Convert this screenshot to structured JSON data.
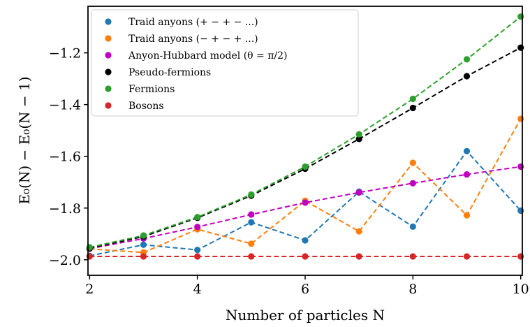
{
  "chart_data": {
    "type": "line",
    "xlabel": "Number of particles N",
    "ylabel": "E₀(N) − E₀(N − 1)",
    "xlim": [
      1.97,
      10.03
    ],
    "ylim": [
      -2.06,
      -1.02
    ],
    "xticks": [
      2,
      4,
      6,
      8,
      10
    ],
    "yticks": [
      -2.0,
      -1.8,
      -1.6,
      -1.4,
      -1.2
    ],
    "xtick_labels": [
      "2",
      "4",
      "6",
      "8",
      "10"
    ],
    "ytick_labels": [
      "−2.0",
      "−1.8",
      "−1.6",
      "−1.4",
      "−1.2"
    ],
    "grid": false,
    "legend_position": "top-left",
    "line_style": "dashed",
    "x": [
      2,
      3,
      4,
      5,
      6,
      7,
      8,
      9,
      10
    ],
    "series": [
      {
        "name": "Traid anyons (+ − + − ...)",
        "color": "#1f77b4",
        "values": [
          -1.985,
          -1.942,
          -1.962,
          -1.855,
          -1.925,
          -1.737,
          -1.872,
          -1.58,
          -1.81
        ]
      },
      {
        "name": "Traid anyons (− + − + ...)",
        "color": "#ff7f0e",
        "values": [
          -1.958,
          -1.972,
          -1.882,
          -1.938,
          -1.772,
          -1.89,
          -1.625,
          -1.828,
          -1.455
        ]
      },
      {
        "name": "Anyon-Hubbard model (θ = π/2)",
        "color": "#c000c0",
        "values": [
          -1.957,
          -1.918,
          -1.873,
          -1.825,
          -1.779,
          -1.74,
          -1.704,
          -1.67,
          -1.64
        ]
      },
      {
        "name": "Pseudo-fermions",
        "color": "#000000",
        "values": [
          -1.955,
          -1.91,
          -1.838,
          -1.752,
          -1.648,
          -1.533,
          -1.413,
          -1.29,
          -1.18
        ]
      },
      {
        "name": "Fermions",
        "color": "#2ca02c",
        "values": [
          -1.952,
          -1.906,
          -1.835,
          -1.748,
          -1.64,
          -1.515,
          -1.378,
          -1.225,
          -1.06
        ]
      },
      {
        "name": "Bosons",
        "color": "#d62728",
        "values": [
          -1.987,
          -1.987,
          -1.987,
          -1.987,
          -1.987,
          -1.987,
          -1.987,
          -1.987,
          -1.987
        ]
      }
    ]
  }
}
